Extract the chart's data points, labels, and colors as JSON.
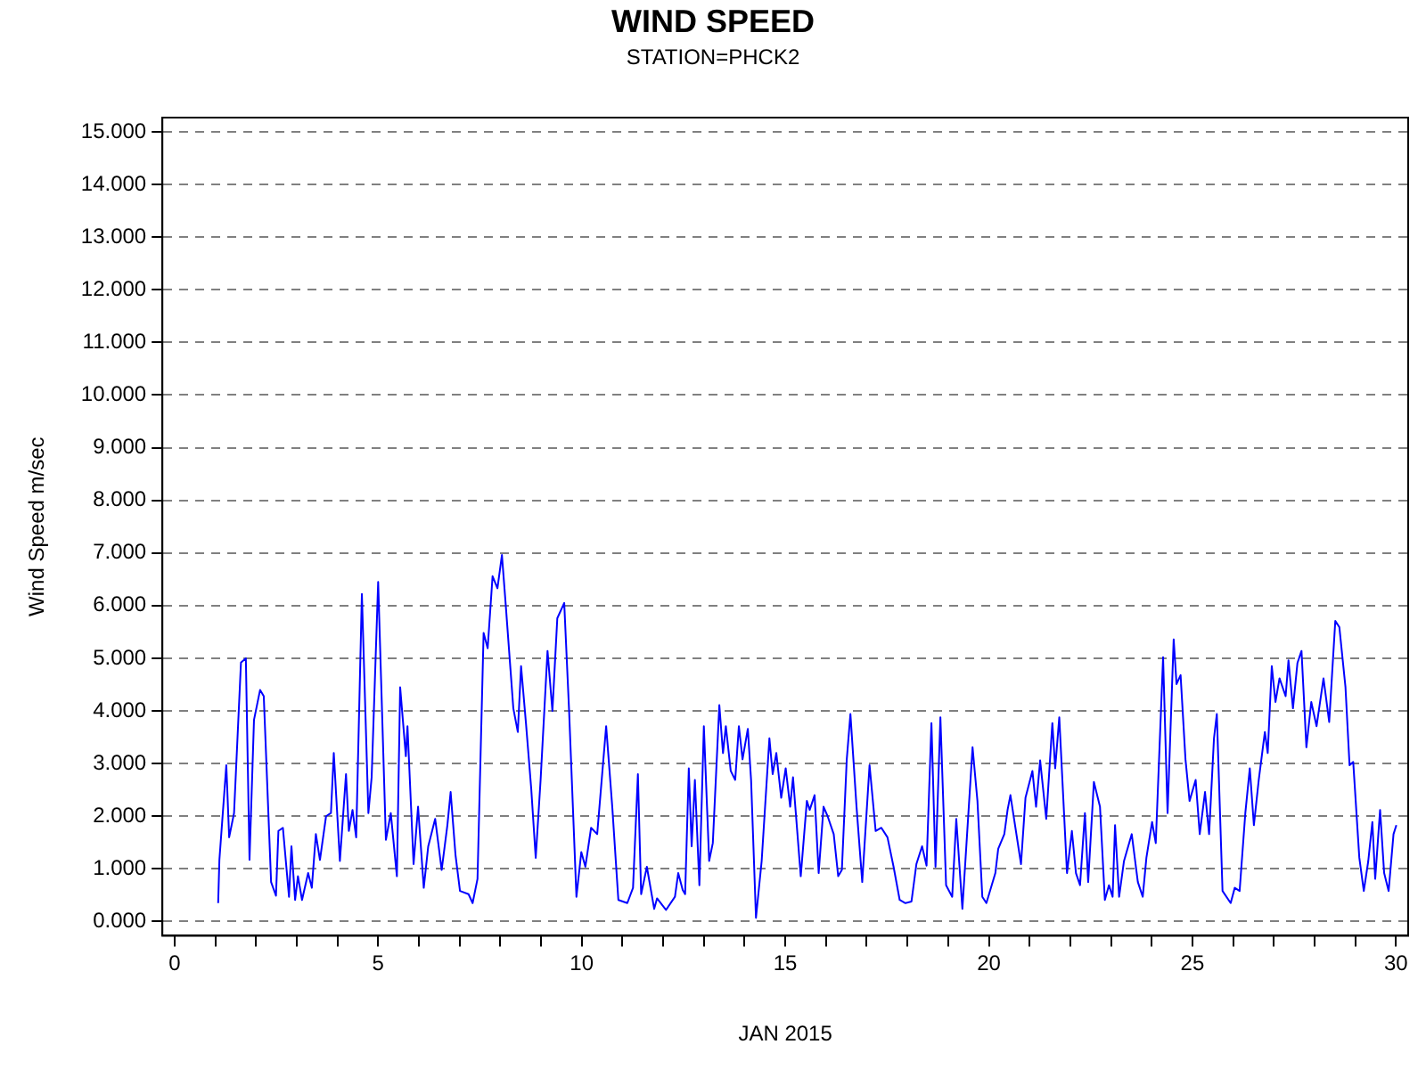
{
  "chart_data": {
    "type": "line",
    "title": "WIND SPEED",
    "subtitle": "STATION=PHCK2",
    "xlabel": "JAN 2015",
    "ylabel": "Wind Speed m/sec",
    "xlim": [
      -0.3,
      30.3
    ],
    "xticks": [
      0,
      {
        "value": 1,
        "label": null
      },
      {
        "value": 2,
        "label": null
      },
      {
        "value": 3,
        "label": null
      },
      {
        "value": 4,
        "label": null
      },
      5,
      {
        "value": 6,
        "label": null
      },
      {
        "value": 7,
        "label": null
      },
      {
        "value": 8,
        "label": null
      },
      {
        "value": 9,
        "label": null
      },
      10,
      {
        "value": 11,
        "label": null
      },
      {
        "value": 12,
        "label": null
      },
      {
        "value": 13,
        "label": null
      },
      {
        "value": 14,
        "label": null
      },
      15,
      {
        "value": 16,
        "label": null
      },
      {
        "value": 17,
        "label": null
      },
      {
        "value": 18,
        "label": null
      },
      {
        "value": 19,
        "label": null
      },
      20,
      {
        "value": 21,
        "label": null
      },
      {
        "value": 22,
        "label": null
      },
      {
        "value": 23,
        "label": null
      },
      {
        "value": 24,
        "label": null
      },
      25,
      {
        "value": 26,
        "label": null
      },
      {
        "value": 27,
        "label": null
      },
      {
        "value": 28,
        "label": null
      },
      {
        "value": 29,
        "label": null
      },
      30
    ],
    "ylim": [
      -0.27,
      15.27
    ],
    "yticks": [
      {
        "value": 0,
        "label": "0.000"
      },
      {
        "value": 1,
        "label": "1.000"
      },
      {
        "value": 2,
        "label": "2.000"
      },
      {
        "value": 3,
        "label": "3.000"
      },
      {
        "value": 4,
        "label": "4.000"
      },
      {
        "value": 5,
        "label": "5.000"
      },
      {
        "value": 6,
        "label": "6.000"
      },
      {
        "value": 7,
        "label": "7.000"
      },
      {
        "value": 8,
        "label": "8.000"
      },
      {
        "value": 9,
        "label": "9.000"
      },
      {
        "value": 10,
        "label": "10.000"
      },
      {
        "value": 11,
        "label": "11.000"
      },
      {
        "value": 12,
        "label": "12.000"
      },
      {
        "value": 13,
        "label": "13.000"
      },
      {
        "value": 14,
        "label": "14.000"
      },
      {
        "value": 15,
        "label": "15.000"
      }
    ],
    "grid": "y",
    "legend": false,
    "marker": "none",
    "line_style": "solid",
    "series": [
      {
        "color": "#0000ff",
        "x": [
          1.07,
          1.1,
          1.27,
          1.34,
          1.46,
          1.63,
          1.75,
          1.84,
          1.95,
          2.1,
          2.19,
          2.37,
          2.49,
          2.55,
          2.66,
          2.81,
          2.87,
          2.96,
          3.03,
          3.13,
          3.28,
          3.37,
          3.47,
          3.57,
          3.72,
          3.84,
          3.91,
          4.06,
          4.21,
          4.28,
          4.37,
          4.46,
          4.6,
          4.76,
          4.84,
          5.0,
          5.19,
          5.31,
          5.46,
          5.54,
          5.68,
          5.72,
          5.87,
          5.98,
          6.12,
          6.23,
          6.4,
          6.56,
          6.7,
          6.78,
          6.9,
          7.01,
          7.22,
          7.32,
          7.44,
          7.59,
          7.69,
          7.81,
          7.93,
          8.04,
          8.13,
          8.25,
          8.32,
          8.43,
          8.51,
          8.63,
          8.76,
          8.87,
          8.99,
          9.16,
          9.28,
          9.4,
          9.57,
          9.69,
          9.87,
          9.99,
          10.09,
          10.23,
          10.38,
          10.6,
          10.75,
          10.9,
          11.12,
          11.26,
          11.38,
          11.46,
          11.6,
          11.78,
          11.85,
          12.07,
          12.29,
          12.37,
          12.48,
          12.54,
          12.63,
          12.7,
          12.78,
          12.89,
          13.0,
          13.13,
          13.22,
          13.38,
          13.47,
          13.54,
          13.66,
          13.77,
          13.86,
          13.95,
          14.08,
          14.16,
          14.28,
          14.42,
          14.61,
          14.69,
          14.78,
          14.9,
          15.01,
          15.12,
          15.19,
          15.38,
          15.53,
          15.6,
          15.72,
          15.82,
          15.94,
          16.04,
          16.19,
          16.3,
          16.39,
          16.51,
          16.6,
          16.75,
          16.89,
          17.07,
          17.22,
          17.36,
          17.51,
          17.66,
          17.81,
          17.95,
          18.1,
          18.22,
          18.36,
          18.47,
          18.59,
          18.69,
          18.81,
          18.95,
          19.1,
          19.2,
          19.35,
          19.6,
          19.72,
          19.84,
          19.94,
          20.16,
          20.23,
          20.38,
          20.46,
          20.53,
          20.79,
          20.9,
          21.07,
          21.16,
          21.26,
          21.41,
          21.56,
          21.63,
          21.73,
          21.92,
          22.04,
          22.14,
          22.24,
          22.36,
          22.44,
          22.58,
          22.73,
          22.85,
          22.95,
          23.04,
          23.1,
          23.2,
          23.32,
          23.51,
          23.66,
          23.78,
          23.87,
          24.01,
          24.1,
          24.28,
          24.39,
          24.54,
          24.61,
          24.71,
          24.83,
          24.93,
          25.08,
          25.18,
          25.31,
          25.41,
          25.53,
          25.6,
          25.74,
          25.94,
          26.04,
          26.16,
          26.3,
          26.41,
          26.51,
          26.63,
          26.78,
          26.85,
          26.95,
          27.04,
          27.14,
          27.29,
          27.36,
          27.47,
          27.58,
          27.68,
          27.8,
          27.92,
          28.05,
          28.22,
          28.36,
          28.51,
          28.61,
          28.76,
          28.86,
          28.95,
          29.1,
          29.21,
          29.32,
          29.42,
          29.49,
          29.61,
          29.71,
          29.82,
          29.94,
          30.01
        ],
        "values": [
          0.35,
          1.17,
          2.97,
          1.6,
          2.06,
          4.92,
          5.0,
          1.17,
          3.83,
          4.4,
          4.28,
          0.75,
          0.49,
          1.72,
          1.78,
          0.47,
          1.43,
          0.41,
          0.86,
          0.41,
          0.92,
          0.64,
          1.66,
          1.17,
          2.0,
          2.06,
          3.2,
          1.15,
          2.8,
          1.72,
          2.12,
          1.6,
          6.22,
          2.06,
          2.74,
          6.45,
          1.55,
          2.06,
          0.86,
          4.45,
          3.14,
          3.71,
          1.09,
          2.18,
          0.64,
          1.43,
          1.95,
          0.98,
          1.83,
          2.46,
          1.26,
          0.58,
          0.52,
          0.35,
          0.81,
          5.48,
          5.19,
          6.56,
          6.33,
          6.96,
          6.05,
          4.79,
          4.05,
          3.6,
          4.85,
          3.77,
          2.52,
          1.21,
          2.69,
          5.14,
          4.0,
          5.76,
          6.05,
          4.0,
          0.47,
          1.32,
          1.04,
          1.78,
          1.66,
          3.71,
          2.18,
          0.41,
          0.35,
          0.64,
          2.8,
          0.52,
          1.04,
          0.24,
          0.44,
          0.22,
          0.47,
          0.92,
          0.6,
          0.52,
          2.91,
          1.43,
          2.69,
          0.69,
          3.71,
          1.15,
          1.49,
          4.11,
          3.2,
          3.71,
          2.86,
          2.69,
          3.71,
          3.08,
          3.66,
          2.69,
          0.07,
          1.15,
          3.48,
          2.8,
          3.2,
          2.35,
          2.91,
          2.18,
          2.74,
          0.86,
          2.29,
          2.12,
          2.4,
          0.92,
          2.18,
          2.0,
          1.66,
          0.86,
          0.98,
          3.08,
          3.94,
          2.18,
          0.75,
          2.97,
          1.72,
          1.78,
          1.6,
          1.04,
          0.41,
          0.35,
          0.38,
          1.09,
          1.43,
          1.06,
          3.77,
          1.04,
          3.88,
          0.69,
          0.47,
          1.95,
          0.24,
          3.31,
          2.29,
          0.47,
          0.35,
          0.92,
          1.38,
          1.66,
          2.12,
          2.4,
          1.09,
          2.35,
          2.86,
          2.18,
          3.06,
          1.95,
          3.77,
          2.91,
          3.88,
          0.92,
          1.72,
          0.92,
          0.69,
          2.06,
          0.75,
          2.65,
          2.18,
          0.41,
          0.69,
          0.47,
          1.83,
          0.47,
          1.15,
          1.66,
          0.75,
          0.47,
          1.21,
          1.89,
          1.49,
          5.02,
          2.06,
          5.36,
          4.51,
          4.68,
          3.08,
          2.29,
          2.69,
          1.66,
          2.46,
          1.66,
          3.48,
          3.94,
          0.58,
          0.35,
          0.64,
          0.58,
          2.06,
          2.91,
          1.83,
          2.69,
          3.6,
          3.2,
          4.85,
          4.17,
          4.62,
          4.28,
          4.96,
          4.05,
          4.91,
          5.14,
          3.31,
          4.17,
          3.71,
          4.62,
          3.79,
          5.71,
          5.59,
          4.45,
          2.97,
          3.03,
          1.21,
          0.58,
          1.15,
          1.89,
          0.81,
          2.12,
          0.92,
          0.58,
          1.66,
          1.83
        ]
      }
    ]
  }
}
